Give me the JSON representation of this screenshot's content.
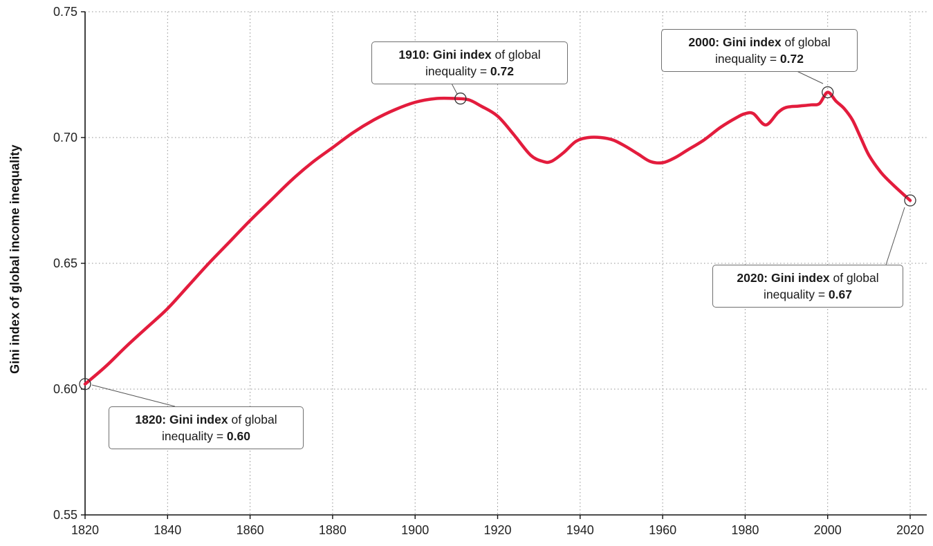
{
  "chart_data": {
    "type": "line",
    "title": "",
    "xlabel": "",
    "ylabel": "Gini index of global income inequality",
    "xlim": [
      1820,
      2020
    ],
    "ylim": [
      0.55,
      0.75
    ],
    "x_ticks": [
      1820,
      1840,
      1860,
      1880,
      1900,
      1920,
      1940,
      1960,
      1980,
      2000,
      2020
    ],
    "x_tick_labels": [
      "1820",
      "1840",
      "1860",
      "1880",
      "1900",
      "1920",
      "1940",
      "1960",
      "1980",
      "2000",
      "2020"
    ],
    "y_ticks": [
      0.55,
      0.6,
      0.65,
      0.7,
      0.75
    ],
    "y_tick_labels": [
      "0.55",
      "0.60",
      "0.65",
      "0.70",
      "0.75"
    ],
    "grid": "dotted",
    "legend": "none",
    "line_color": "#e31c3d",
    "series": [
      {
        "name": "Gini index of global income inequality",
        "x": [
          1820,
          1825,
          1830,
          1835,
          1840,
          1845,
          1850,
          1855,
          1860,
          1865,
          1870,
          1875,
          1880,
          1885,
          1890,
          1895,
          1900,
          1905,
          1910,
          1913,
          1916,
          1920,
          1924,
          1928,
          1931,
          1933,
          1936,
          1939,
          1942,
          1945,
          1948,
          1951,
          1954,
          1957,
          1960,
          1963,
          1966,
          1970,
          1974,
          1978,
          1980,
          1982,
          1985,
          1988,
          1990,
          1993,
          1996,
          1998,
          2000,
          2002,
          2004,
          2006,
          2008,
          2010,
          2013,
          2016,
          2020
        ],
        "y": [
          0.602,
          0.609,
          0.617,
          0.6245,
          0.632,
          0.641,
          0.65,
          0.6585,
          0.667,
          0.675,
          0.683,
          0.69,
          0.696,
          0.702,
          0.707,
          0.711,
          0.714,
          0.7155,
          0.7155,
          0.715,
          0.7125,
          0.7085,
          0.701,
          0.693,
          0.6905,
          0.6905,
          0.694,
          0.6985,
          0.7,
          0.7,
          0.699,
          0.6965,
          0.6935,
          0.6905,
          0.69,
          0.692,
          0.695,
          0.699,
          0.704,
          0.708,
          0.7095,
          0.7095,
          0.705,
          0.71,
          0.712,
          0.7125,
          0.713,
          0.7135,
          0.718,
          0.7145,
          0.7115,
          0.707,
          0.7,
          0.693,
          0.686,
          0.681,
          0.675
        ]
      }
    ],
    "markers": [
      {
        "x": 1820,
        "y": 0.602
      },
      {
        "x": 1911,
        "y": 0.7155
      },
      {
        "x": 2000,
        "y": 0.718
      },
      {
        "x": 2020,
        "y": 0.675
      }
    ],
    "annotations": [
      {
        "bold_lead": "1820: Gini index",
        "text_mid": " of global inequality = ",
        "bold_value": "0.60"
      },
      {
        "bold_lead": "1910: Gini index",
        "text_mid": " of global inequality = ",
        "bold_value": "0.72"
      },
      {
        "bold_lead": "2000: Gini index",
        "text_mid": " of global inequality = ",
        "bold_value": "0.72"
      },
      {
        "bold_lead": "2020: Gini index",
        "text_mid": " of global inequality = ",
        "bold_value": "0.67"
      }
    ]
  }
}
